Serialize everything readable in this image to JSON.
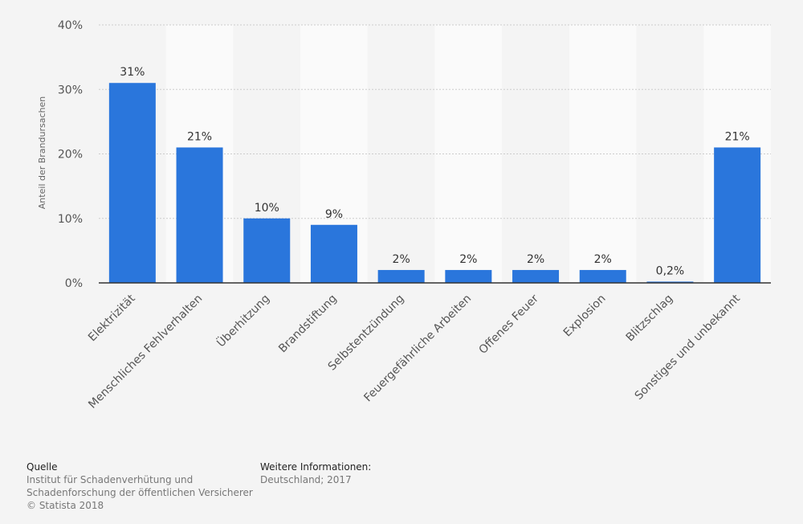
{
  "chart_data": {
    "type": "bar",
    "title": "",
    "xlabel": "",
    "ylabel": "Anteil der Brandursachen",
    "ylim": [
      0,
      40
    ],
    "yticks": [
      "0%",
      "10%",
      "20%",
      "30%",
      "40%"
    ],
    "categories": [
      "Elektrizität",
      "Menschliches Fehlverhalten",
      "Überhitzung",
      "Brandstiftung",
      "Selbstentzündung",
      "Feuergefährliche Arbeiten",
      "Offenes Feuer",
      "Explosion",
      "Blitzschlag",
      "Sonstiges und unbekannt"
    ],
    "values": [
      31,
      21,
      10,
      9,
      2,
      2,
      2,
      2,
      0.2,
      21
    ],
    "value_labels": [
      "31%",
      "21%",
      "10%",
      "9%",
      "2%",
      "2%",
      "2%",
      "2%",
      "0,2%",
      "21%"
    ],
    "bar_color": "#2a76dc",
    "grid": true
  },
  "source": {
    "heading": "Quelle",
    "lines": [
      "Institut für Schadenverhütung und",
      "Schadenforschung der öffentlichen Versicherer",
      "© Statista 2018"
    ]
  },
  "info": {
    "heading": "Weitere Informationen:",
    "lines": [
      "Deutschland; 2017"
    ]
  }
}
